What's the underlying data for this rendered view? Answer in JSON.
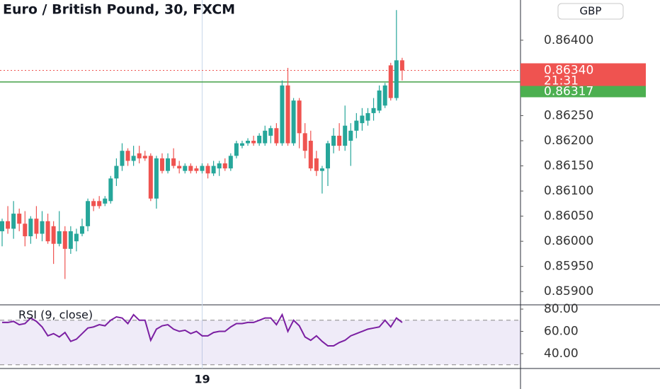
{
  "chart_data": {
    "type": "candlestick",
    "title": "Euro / British Pound, 30, FXCM",
    "currency": "GBP",
    "categories": [
      null,
      null,
      null,
      null,
      null,
      null,
      null,
      null,
      null,
      null,
      null,
      null,
      null,
      null,
      null,
      null,
      null,
      null,
      null,
      null,
      null,
      null,
      null,
      null,
      null,
      null,
      null,
      null,
      null,
      null,
      null,
      null,
      null,
      null,
      null,
      "19",
      null,
      null,
      null,
      null,
      null,
      null,
      null,
      null,
      null,
      null,
      null,
      null,
      null,
      null,
      null,
      null,
      null,
      null,
      null,
      null,
      null,
      null,
      null,
      null,
      null,
      null,
      null,
      null,
      null,
      null,
      null,
      null,
      null,
      null,
      null
    ],
    "open": [
      0.8602,
      0.8604,
      0.86025,
      0.86055,
      0.86035,
      0.8601,
      0.86045,
      0.86015,
      0.8604,
      0.8603,
      0.85995,
      0.8602,
      0.85985,
      0.86,
      0.86015,
      0.8603,
      0.8608,
      0.8608,
      0.86075,
      0.8608,
      0.86125,
      0.8615,
      0.8618,
      0.8616,
      0.86175,
      0.8617,
      0.8617,
      0.86085,
      0.86165,
      0.8614,
      0.86165,
      0.8615,
      0.8614,
      0.8615,
      0.86145,
      0.8614,
      0.8615,
      0.86135,
      0.86145,
      0.86155,
      0.86145,
      0.8617,
      0.8619,
      0.86195,
      0.862,
      0.86195,
      0.86195,
      0.8621,
      0.86225,
      0.86195,
      0.8631,
      0.86195,
      0.8628,
      0.86215,
      0.862,
      0.86165,
      0.8614,
      0.86145,
      0.8619,
      0.8621,
      0.8619,
      0.862,
      0.8622,
      0.86235,
      0.8624,
      0.86255,
      0.8626,
      0.8627,
      0.8635,
      0.86285,
      0.8636
    ],
    "high": [
      0.86045,
      0.8607,
      0.8608,
      0.86065,
      0.8606,
      0.8605,
      0.8607,
      0.8606,
      0.86055,
      0.8604,
      0.8606,
      0.8603,
      0.8603,
      0.86025,
      0.86045,
      0.86085,
      0.86085,
      0.8609,
      0.8609,
      0.8613,
      0.86165,
      0.86195,
      0.86185,
      0.8619,
      0.8619,
      0.8618,
      0.86175,
      0.8617,
      0.86175,
      0.86175,
      0.86185,
      0.8616,
      0.86155,
      0.86155,
      0.8615,
      0.86155,
      0.86155,
      0.8616,
      0.8616,
      0.86165,
      0.86175,
      0.862,
      0.862,
      0.86205,
      0.8621,
      0.86215,
      0.8623,
      0.8623,
      0.86235,
      0.8632,
      0.86345,
      0.86285,
      0.86285,
      0.86235,
      0.8622,
      0.8618,
      0.8615,
      0.862,
      0.86225,
      0.86235,
      0.8627,
      0.86235,
      0.86255,
      0.86265,
      0.86265,
      0.86285,
      0.8631,
      0.86315,
      0.86355,
      0.8646,
      0.86365
    ],
    "low": [
      0.8599,
      0.86015,
      0.86005,
      0.8602,
      0.8599,
      0.85995,
      0.86005,
      0.86,
      0.85995,
      0.85955,
      0.8599,
      0.85925,
      0.85975,
      0.8598,
      0.8601,
      0.8602,
      0.8606,
      0.86065,
      0.8607,
      0.86075,
      0.8611,
      0.8614,
      0.8615,
      0.8615,
      0.86155,
      0.8616,
      0.8608,
      0.86065,
      0.86135,
      0.86135,
      0.86145,
      0.86135,
      0.86135,
      0.86135,
      0.86135,
      0.86135,
      0.86125,
      0.8613,
      0.8613,
      0.8614,
      0.8614,
      0.86165,
      0.86185,
      0.8619,
      0.8619,
      0.8619,
      0.8619,
      0.86195,
      0.8619,
      0.8619,
      0.8619,
      0.8619,
      0.86185,
      0.86165,
      0.8614,
      0.8613,
      0.86095,
      0.8611,
      0.86175,
      0.8618,
      0.8618,
      0.8615,
      0.86205,
      0.8622,
      0.8623,
      0.8624,
      0.86255,
      0.86265,
      0.8628,
      0.8628,
      0.8632
    ],
    "close": [
      0.8604,
      0.86025,
      0.86055,
      0.86035,
      0.8601,
      0.86045,
      0.86015,
      0.8604,
      0.86,
      0.85995,
      0.8602,
      0.85985,
      0.8602,
      0.86015,
      0.8603,
      0.8608,
      0.8607,
      0.8607,
      0.86085,
      0.86125,
      0.8615,
      0.8618,
      0.8616,
      0.8617,
      0.86165,
      0.86165,
      0.86085,
      0.86165,
      0.8614,
      0.86165,
      0.8615,
      0.86145,
      0.8615,
      0.8614,
      0.8614,
      0.8615,
      0.86135,
      0.8615,
      0.86155,
      0.86145,
      0.8617,
      0.86195,
      0.86195,
      0.862,
      0.86195,
      0.8621,
      0.8622,
      0.86225,
      0.86195,
      0.8631,
      0.86195,
      0.8628,
      0.86215,
      0.8618,
      0.86145,
      0.8614,
      0.86145,
      0.86195,
      0.8621,
      0.8619,
      0.8623,
      0.8622,
      0.8624,
      0.8625,
      0.86255,
      0.86265,
      0.863,
      0.8631,
      0.86285,
      0.8636,
      0.8634
    ],
    "up_color": "#26a69a",
    "down_color": "#ef5350",
    "ylim": [
      0.85875,
      0.8648
    ],
    "yticks": [
      {
        "value": 0.859,
        "label": "0.85900"
      },
      {
        "value": 0.8595,
        "label": "0.85950"
      },
      {
        "value": 0.86,
        "label": "0.86000"
      },
      {
        "value": 0.8605,
        "label": "0.86050"
      },
      {
        "value": 0.861,
        "label": "0.86100"
      },
      {
        "value": 0.8615,
        "label": "0.86150"
      },
      {
        "value": 0.862,
        "label": "0.86200"
      },
      {
        "value": 0.8625,
        "label": "0.86250"
      },
      {
        "value": 0.864,
        "label": "0.86400"
      }
    ],
    "last_price": {
      "value": 0.8634,
      "label": "0.86340"
    },
    "countdown": "21:31",
    "price_line": {
      "value": 0.86317,
      "label": "0.86317"
    },
    "indicator": {
      "type": "line",
      "title": "RSI (9, close)",
      "color": "#7b1fa2",
      "values": [
        68,
        68,
        69,
        66,
        67,
        72,
        69,
        64,
        56,
        58,
        55,
        59,
        51,
        53,
        58,
        63,
        64,
        66,
        65,
        70,
        73,
        72,
        67,
        75,
        70,
        70,
        52,
        62,
        65,
        66,
        62,
        60,
        61,
        58,
        60,
        56,
        56,
        59,
        60,
        60,
        64,
        67,
        67,
        68,
        68,
        70,
        72,
        72,
        66,
        75,
        60,
        70,
        65,
        55,
        52,
        56,
        51,
        47,
        47,
        50,
        52,
        56,
        58,
        60,
        62,
        63,
        64,
        70,
        64,
        72,
        68
      ],
      "ylim": [
        27.3,
        83.2
      ],
      "yticks": [
        {
          "value": 40,
          "label": "40.00"
        },
        {
          "value": 60,
          "label": "60.00"
        },
        {
          "value": 80,
          "label": "80.00"
        }
      ],
      "bands": [
        30,
        70
      ]
    }
  }
}
